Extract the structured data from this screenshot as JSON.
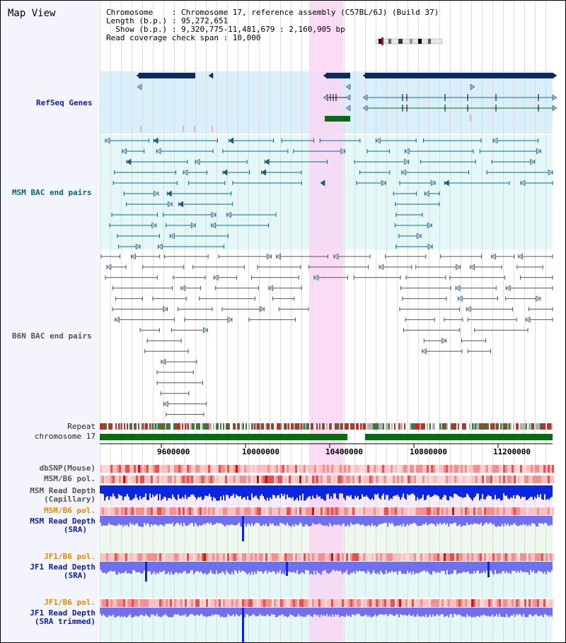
{
  "title": "Map View",
  "info": {
    "line1": "Chromosome    : Chromosome 17, reference assembly (C57BL/6J) (Build 37)",
    "line2": "Length (b.p.) : 95,272,651",
    "line3": "  Show (b.p.) : 9,320,775-11,481,679 : 2,160,905 bp",
    "line4": "Read coverage check span : 10,000"
  },
  "tracks": {
    "refseq": "RefSeq Genes",
    "msm_bac": "MSM BAC end pairs",
    "b6n_bac": "B6N BAC end pairs",
    "repeat": "Repeat",
    "chromosome": "chromosome 17",
    "dbsnp": "dbSNP(Mouse)",
    "msm_b6_pol_1": "MSM/B6 pol.",
    "msm_read_depth_cap_1": "MSM Read Depth",
    "msm_read_depth_cap_2": "(Capillary)",
    "msm_b6_pol_2": "MSM/B6 pol.",
    "msm_read_depth_sra_1": "MSM Read Depth",
    "msm_read_depth_sra_2": "(SRA)",
    "jf1_b6_pol_1": "JF1/B6 pol.",
    "jf1_read_depth_sra_1": "JF1 Read Depth",
    "jf1_read_depth_sra_2": "(SRA)",
    "jf1_b6_pol_2": "JF1/B6 pol.",
    "jf1_read_depth_trim_1": "JF1 Read Depth",
    "jf1_read_depth_trim_2": "(SRA trimmed)"
  },
  "axis": {
    "ticks": [
      "9600000",
      "10000000",
      "10400000",
      "10800000",
      "11200000"
    ]
  },
  "colors": {
    "highlight": "#f9d6f3",
    "refseq_bg": "#d9f0fa",
    "bac_bg": "#e4f8f8",
    "gene": "#0b2a5e",
    "bac": "#0b6a8a",
    "b6n": "#555555",
    "chrom": "#0a6a14",
    "depth": "#0a26e0",
    "depth_light": "#6f6ff0"
  }
}
